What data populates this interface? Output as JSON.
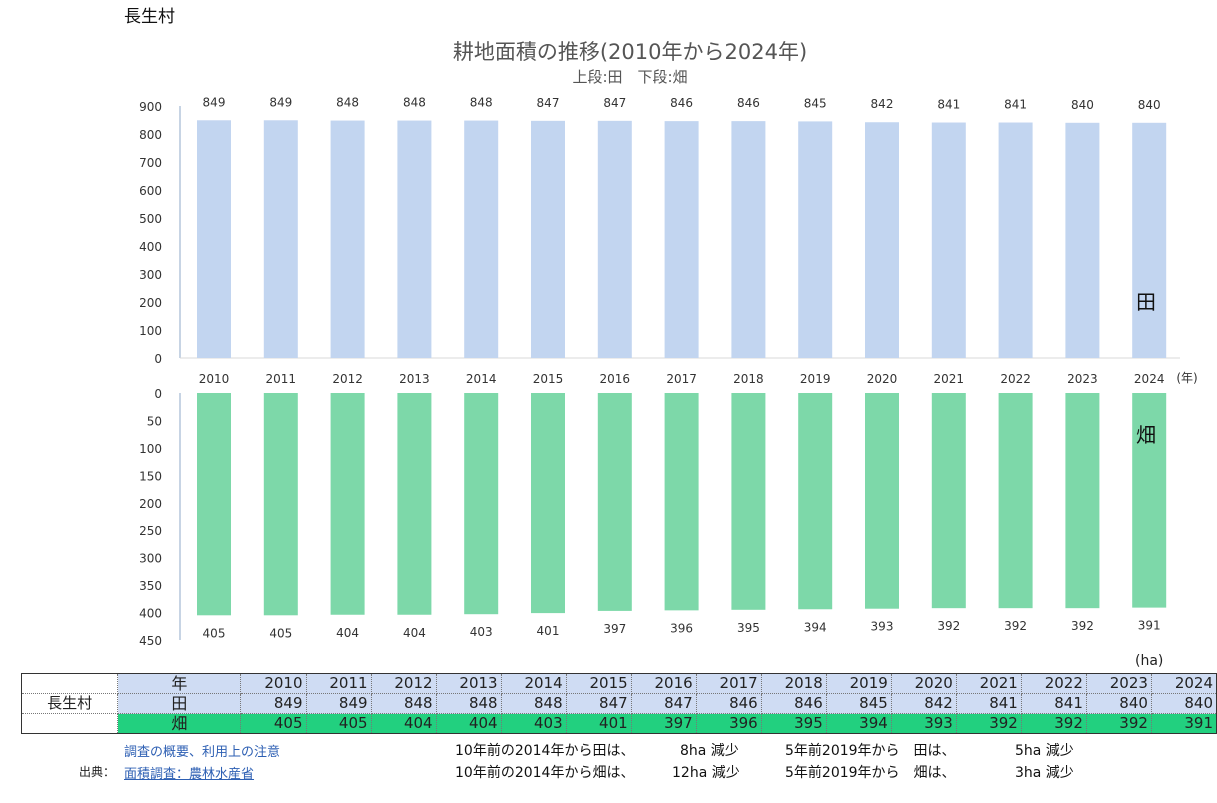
{
  "region": "長生村",
  "chart_data": {
    "type": "bar",
    "title": "耕地面積の推移(2010年から2024年)",
    "subtitle": "上段:田　下段:畑",
    "x_unit_label": "(年)",
    "categories": [
      "2010",
      "2011",
      "2012",
      "2013",
      "2014",
      "2015",
      "2016",
      "2017",
      "2018",
      "2019",
      "2020",
      "2021",
      "2022",
      "2023",
      "2024"
    ],
    "series": [
      {
        "name": "田",
        "values": [
          849,
          849,
          848,
          848,
          848,
          847,
          847,
          846,
          846,
          845,
          842,
          841,
          841,
          840,
          840
        ],
        "color": "#c2d5f0",
        "ylim": [
          0,
          900
        ],
        "yticks": [
          0,
          100,
          200,
          300,
          400,
          500,
          600,
          700,
          800,
          900
        ]
      },
      {
        "name": "畑",
        "values": [
          405,
          405,
          404,
          404,
          403,
          401,
          397,
          396,
          395,
          394,
          393,
          392,
          392,
          392,
          391
        ],
        "color": "#7dd8a9",
        "ylim": [
          0,
          450
        ],
        "yticks": [
          0,
          50,
          100,
          150,
          200,
          250,
          300,
          350,
          400,
          450
        ],
        "inverted": true
      }
    ]
  },
  "table": {
    "unit": "(ha)",
    "year_header": "年",
    "region_name": "長生村",
    "paddy_label": "田",
    "field_label": "畑",
    "years": [
      "2010",
      "2011",
      "2012",
      "2013",
      "2014",
      "2015",
      "2016",
      "2017",
      "2018",
      "2019",
      "2020",
      "2021",
      "2022",
      "2023",
      "2024"
    ],
    "paddy": [
      "849",
      "849",
      "848",
      "848",
      "848",
      "847",
      "847",
      "846",
      "846",
      "845",
      "842",
      "841",
      "841",
      "840",
      "840"
    ],
    "field": [
      "405",
      "405",
      "404",
      "404",
      "403",
      "401",
      "397",
      "396",
      "395",
      "394",
      "393",
      "392",
      "392",
      "392",
      "391"
    ]
  },
  "notes": {
    "overview_link": "調査の概要、利用上の注意",
    "source_prefix": "出典：",
    "source_link": "面積調査：農林水産省"
  },
  "summary": {
    "paddy_10y": "10年前の2014年から田は、",
    "paddy_10y_val": "8ha 減少",
    "paddy_5y": "5年前2019年から　田は、",
    "paddy_5y_val": "5ha 減少",
    "field_10y": "10年前の2014年から畑は、",
    "field_10y_val": "12ha 減少",
    "field_5y": "5年前2019年から　畑は、",
    "field_5y_val": "3ha 減少"
  }
}
